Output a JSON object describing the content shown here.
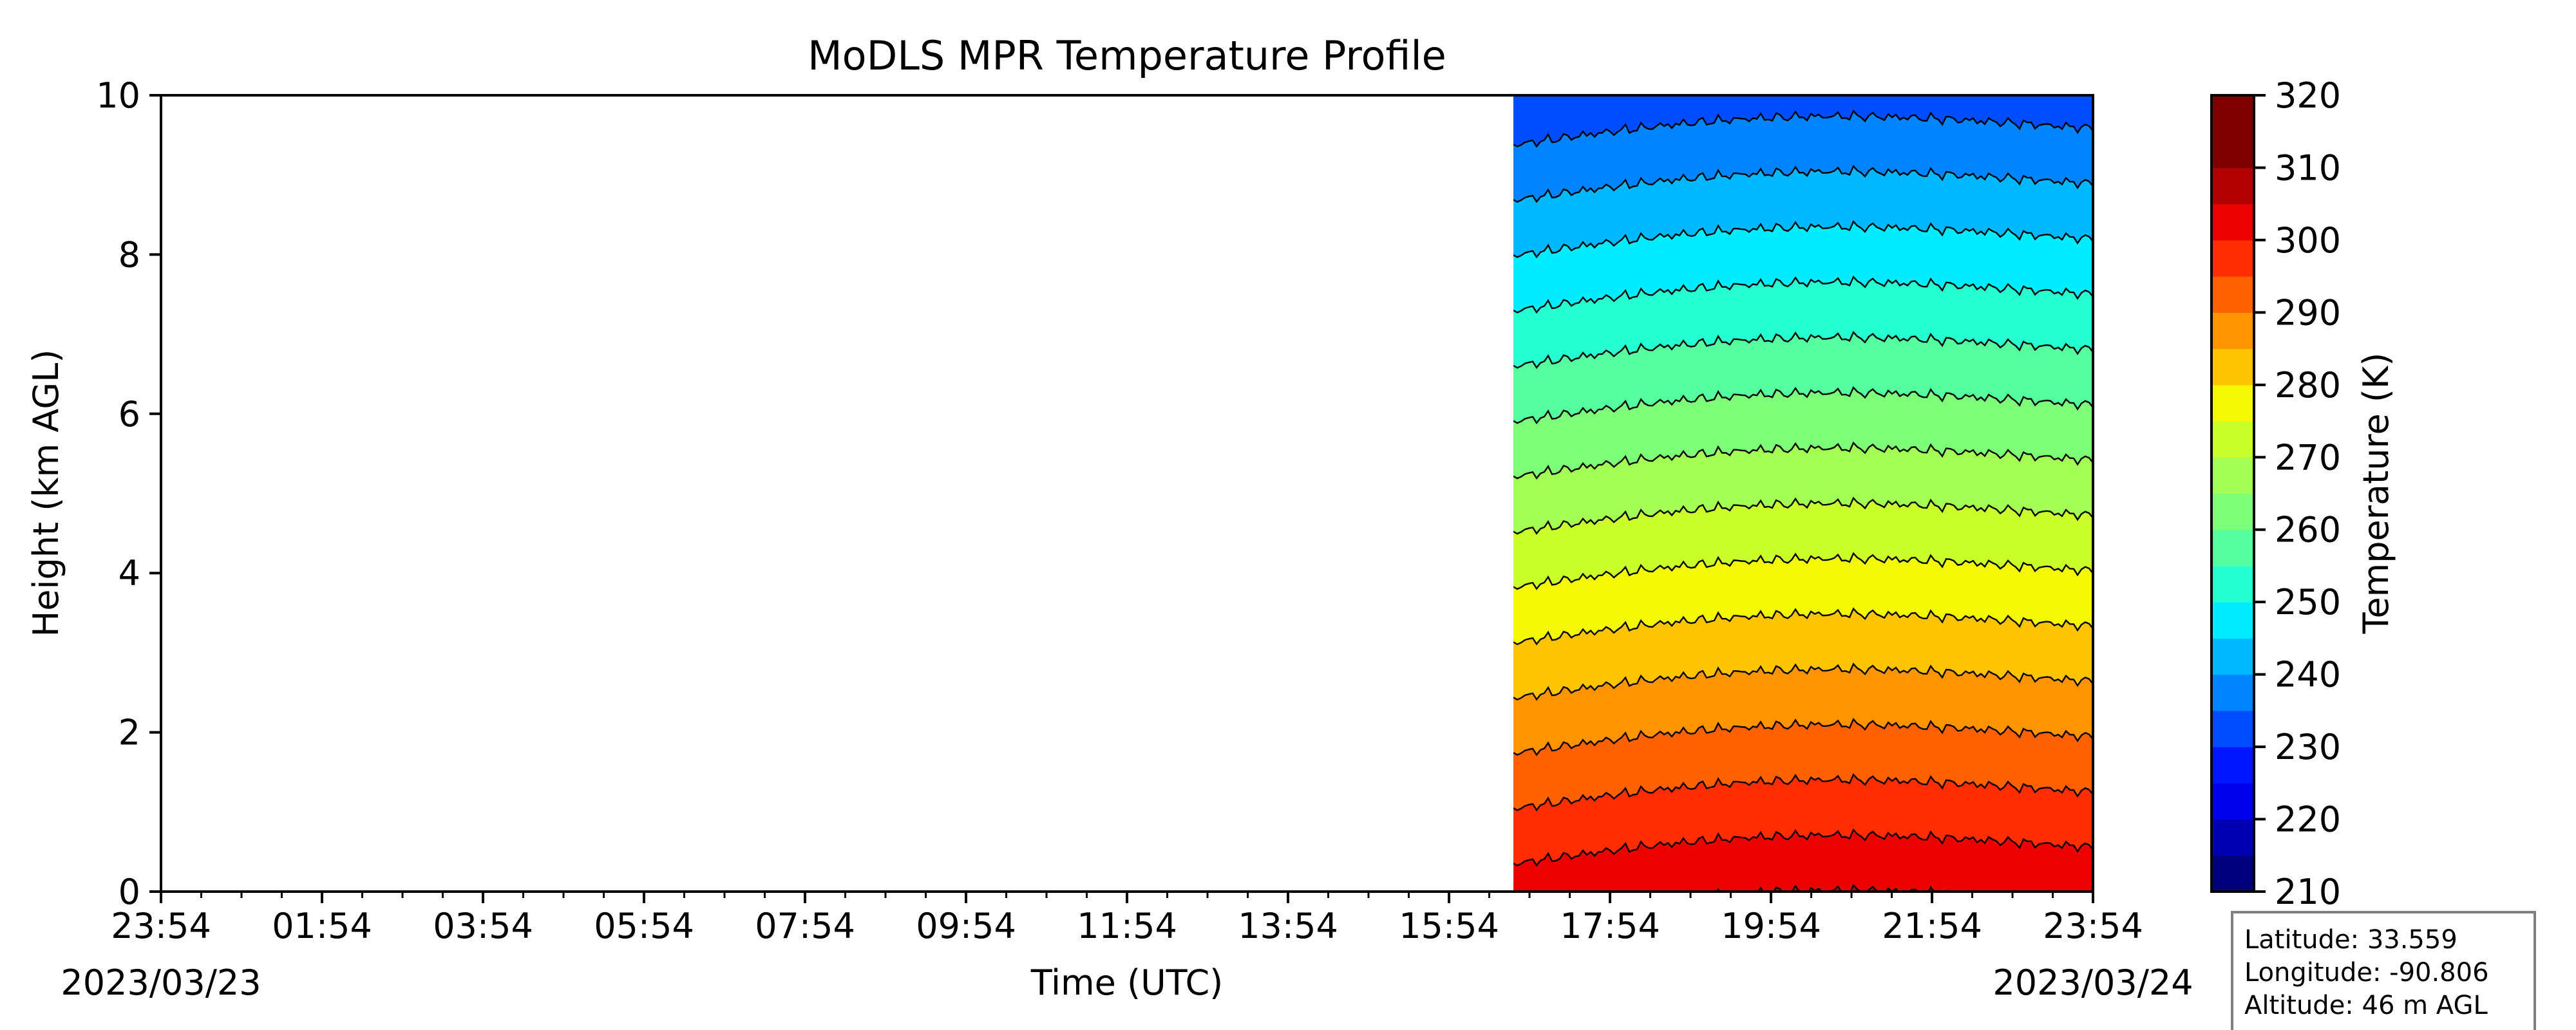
{
  "chart_data": {
    "type": "heatmap",
    "title": "MoDLS MPR Temperature Profile",
    "xlabel": "Time (UTC)",
    "ylabel": "Height (km AGL)",
    "x_tick_labels": [
      "23:54",
      "01:54",
      "03:54",
      "05:54",
      "07:54",
      "09:54",
      "11:54",
      "13:54",
      "15:54",
      "17:54",
      "19:54",
      "21:54",
      "23:54"
    ],
    "x_tick_hours": [
      0,
      2,
      4,
      6,
      8,
      10,
      12,
      14,
      16,
      18,
      20,
      22,
      24
    ],
    "start_date_label": "2023/03/23",
    "end_date_label": "2023/03/24",
    "y_ticks": [
      0,
      2,
      4,
      6,
      8,
      10
    ],
    "ylim": [
      0,
      10
    ],
    "data_start_hour": 16.8,
    "data_end_hour": 24,
    "colorbar": {
      "label": "Temperature (K)",
      "ticks": [
        210,
        220,
        230,
        240,
        250,
        260,
        270,
        280,
        290,
        300,
        310,
        320
      ],
      "range": [
        210,
        320
      ],
      "level_step": 5,
      "colors": [
        "#00007f",
        "#0000b2",
        "#0000ec",
        "#0016ff",
        "#004cff",
        "#0084ff",
        "#00b8ff",
        "#00ecff",
        "#26ffd0",
        "#55ffa0",
        "#7dff7a",
        "#a3ff53",
        "#cbff2b",
        "#f4f802",
        "#ffc400",
        "#ff9400",
        "#ff6000",
        "#ff2d00",
        "#ec0000",
        "#b20000",
        "#7f0000",
        "#7f0000"
      ]
    },
    "temperature_profile": {
      "surface_temperature_start": 302.5,
      "surface_temperature_end": 304.5,
      "lapse_rate_K_per_km": 7.2
    }
  },
  "station": {
    "latitude": "Latitude: 33.559",
    "longitude": "Longitude: -90.806",
    "altitude": "Altitude: 46 m AGL"
  }
}
